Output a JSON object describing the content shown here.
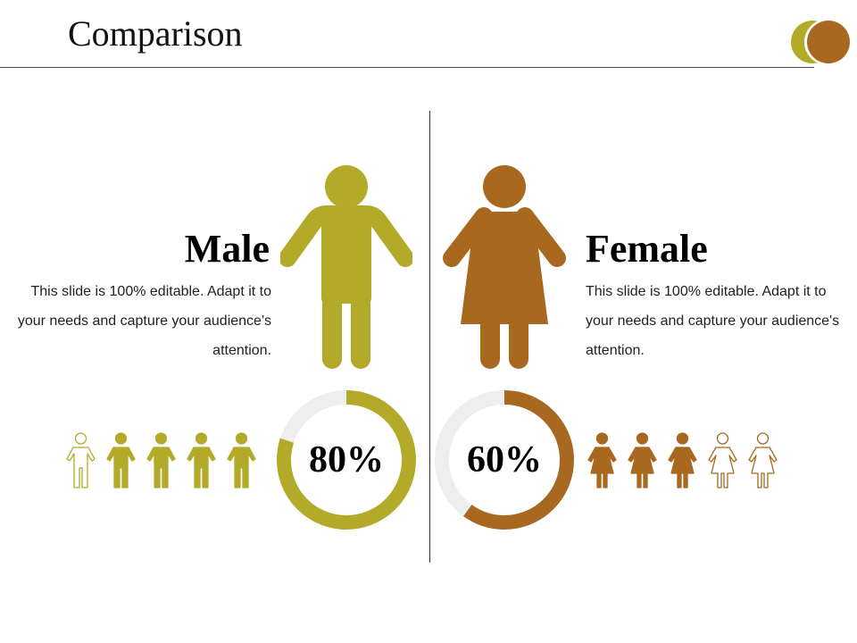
{
  "slide": {
    "title": "Comparison"
  },
  "colors": {
    "male": "#b3aa2a",
    "female": "#a8681f",
    "track": "#eeeeee"
  },
  "male": {
    "heading": "Male",
    "description": "This slide is 100% editable. Adapt it to your needs and capture your audience's attention.",
    "percent_label": "80%",
    "percent_value": 80,
    "icons_filled": 4,
    "icons_total": 5,
    "icon": "male-figure-icon"
  },
  "female": {
    "heading": "Female",
    "description": "This slide is 100% editable. Adapt it to your needs and capture your audience's attention.",
    "percent_label": "60%",
    "percent_value": 60,
    "icons_filled": 3,
    "icons_total": 5,
    "icon": "female-figure-icon"
  }
}
